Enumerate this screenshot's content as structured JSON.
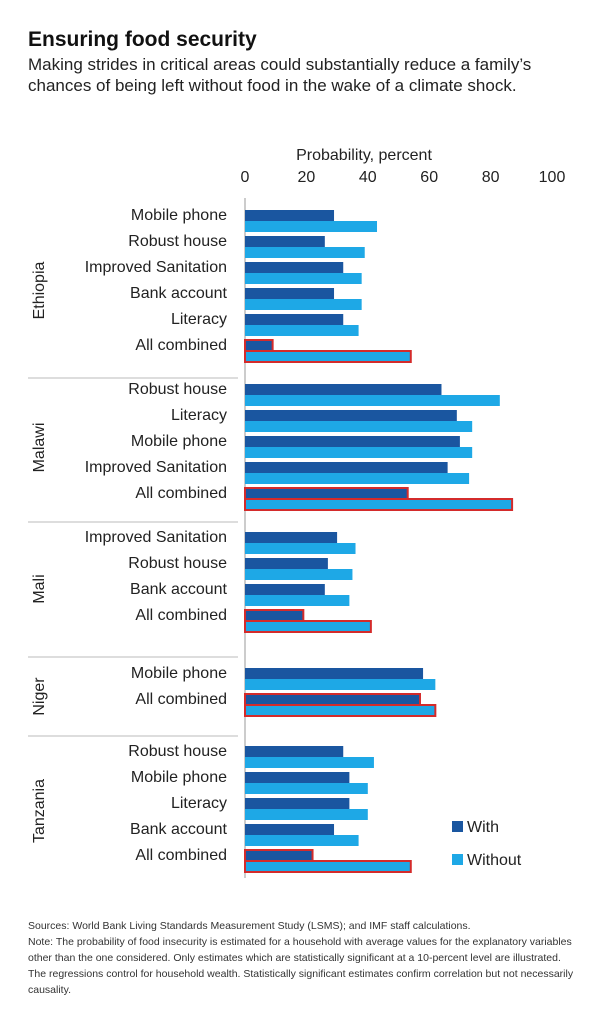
{
  "title": "Ensuring food security",
  "subtitle": "Making strides in critical areas could substantially reduce a family’s chances of being left without food in the wake of a climate shock.",
  "chart_data": {
    "type": "bar",
    "orientation": "horizontal",
    "xlabel": "Probability, percent",
    "xlim": [
      0,
      100
    ],
    "xticks": [
      "0",
      "20",
      "40",
      "60",
      "80",
      "100"
    ],
    "legend_position": "bottom-right",
    "series_names": [
      "With",
      "Without"
    ],
    "colors": {
      "with": "#1a56a0",
      "without": "#1ea8e6",
      "highlight_outline": "#d42b2b"
    },
    "groups": [
      {
        "name": "Ethiopia",
        "items": [
          {
            "label": "Mobile phone",
            "with": 29,
            "without": 43
          },
          {
            "label": "Robust house",
            "with": 26,
            "without": 39
          },
          {
            "label": "Improved Sanitation",
            "with": 32,
            "without": 38
          },
          {
            "label": "Bank account",
            "with": 29,
            "without": 38
          },
          {
            "label": "Literacy",
            "with": 32,
            "without": 37
          },
          {
            "label": "All combined",
            "with": 9,
            "without": 54,
            "highlight": true
          }
        ]
      },
      {
        "name": "Malawi",
        "items": [
          {
            "label": "Robust house",
            "with": 64,
            "without": 83
          },
          {
            "label": "Literacy",
            "with": 69,
            "without": 74
          },
          {
            "label": "Mobile phone",
            "with": 70,
            "without": 74
          },
          {
            "label": "Improved Sanitation",
            "with": 66,
            "without": 73
          },
          {
            "label": "All combined",
            "with": 53,
            "without": 87,
            "highlight": true
          }
        ]
      },
      {
        "name": "Mali",
        "items": [
          {
            "label": "Improved Sanitation",
            "with": 30,
            "without": 36
          },
          {
            "label": "Robust house",
            "with": 27,
            "without": 35
          },
          {
            "label": "Bank account",
            "with": 26,
            "without": 34
          },
          {
            "label": "All combined",
            "with": 19,
            "without": 41,
            "highlight": true
          }
        ]
      },
      {
        "name": "Niger",
        "items": [
          {
            "label": "Mobile phone",
            "with": 58,
            "without": 62
          },
          {
            "label": "All combined",
            "with": 57,
            "without": 62,
            "highlight": true
          }
        ]
      },
      {
        "name": "Tanzania",
        "items": [
          {
            "label": "Robust house",
            "with": 32,
            "without": 42
          },
          {
            "label": "Mobile phone",
            "with": 34,
            "without": 40
          },
          {
            "label": "Literacy",
            "with": 34,
            "without": 40
          },
          {
            "label": "Bank account",
            "with": 29,
            "without": 37
          },
          {
            "label": "All combined",
            "with": 22,
            "without": 54,
            "highlight": true
          }
        ]
      }
    ]
  },
  "sources": {
    "line1": "Sources: World Bank Living Standards Measurement Study (LSMS); and IMF staff calculations.",
    "line2": "Note: The probability of food insecurity is estimated for a household with average values for the explanatory variables other than the one considered. Only estimates which are statistically significant at a 10-percent level are illustrated. The regressions control for household wealth. Statistically significant estimates confirm correlation but not necessarily causality."
  }
}
